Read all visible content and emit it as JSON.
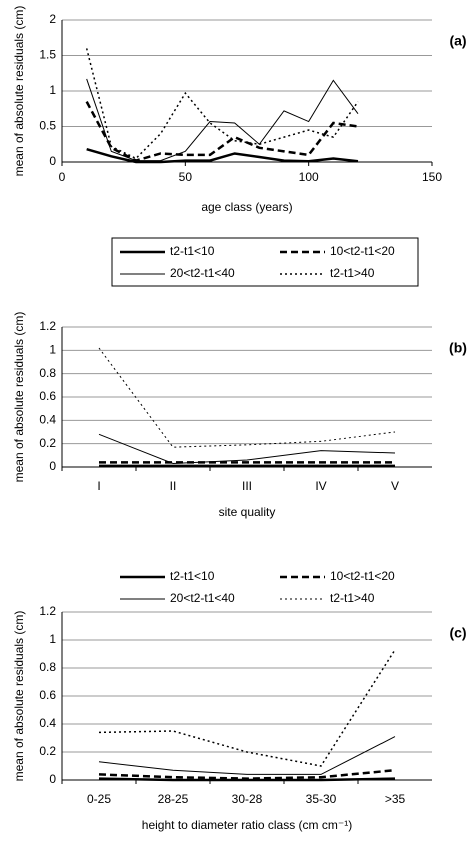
{
  "chart_data": [
    {
      "type": "line",
      "panel_label": "(a)",
      "x_label": "age class (years)",
      "y_label": "mean of absolute residuals (cm)",
      "x": [
        10,
        20,
        30,
        40,
        50,
        60,
        70,
        80,
        90,
        100,
        110,
        120
      ],
      "xlim": [
        0,
        150
      ],
      "xticks": [
        0,
        50,
        100,
        150
      ],
      "ylim": [
        0,
        2
      ],
      "yticks": [
        0,
        0.5,
        1,
        1.5,
        2
      ],
      "grid": true,
      "legend": "bottom-boxed",
      "series": [
        {
          "name": "t2-t1<10",
          "color": "#000000",
          "line_style": "solid",
          "line_width": 2.5,
          "values": [
            0.18,
            0.08,
            0.0,
            0.0,
            0.02,
            0.02,
            0.12,
            0.07,
            0.02,
            0.01,
            0.05,
            0.01
          ]
        },
        {
          "name": "10<t2-t1<20",
          "color": "#000000",
          "line_style": "dashed",
          "line_width": 2.5,
          "values": [
            0.85,
            0.2,
            0.02,
            0.12,
            0.1,
            0.1,
            0.35,
            0.2,
            0.15,
            0.1,
            0.55,
            0.5
          ]
        },
        {
          "name": "20<t2-t1<40",
          "color": "#000000",
          "line_style": "solid",
          "line_width": 1,
          "values": [
            1.17,
            0.15,
            0.02,
            0.02,
            0.15,
            0.57,
            0.55,
            0.25,
            0.72,
            0.57,
            1.15,
            0.68
          ]
        },
        {
          "name": "t2-t1>40",
          "color": "#000000",
          "line_style": "dotted",
          "line_width": 1.5,
          "values": [
            1.6,
            0.22,
            0.05,
            0.4,
            0.97,
            0.55,
            0.3,
            0.25,
            0.35,
            0.45,
            0.35,
            0.85
          ]
        }
      ]
    },
    {
      "type": "line",
      "panel_label": "(b)",
      "x_label": "site quality",
      "y_label": "mean of absolute residuals (cm)",
      "categories": [
        "I",
        "II",
        "III",
        "IV",
        "V"
      ],
      "ylim": [
        0,
        1.2
      ],
      "yticks": [
        0,
        0.2,
        0.4,
        0.6,
        0.8,
        1,
        1.2
      ],
      "grid": true,
      "legend": "bottom",
      "series": [
        {
          "name": "t2-t1<10",
          "color": "#000000",
          "line_style": "solid",
          "line_width": 2.5,
          "values": [
            0.01,
            0.01,
            0.01,
            0.01,
            0.01
          ]
        },
        {
          "name": "10<t2-t1<20",
          "color": "#000000",
          "line_style": "dashed",
          "line_width": 2.5,
          "values": [
            0.04,
            0.04,
            0.04,
            0.04,
            0.04
          ]
        },
        {
          "name": "20<t2-t1<40",
          "color": "#000000",
          "line_style": "solid",
          "line_width": 1,
          "values": [
            0.28,
            0.03,
            0.06,
            0.14,
            0.12
          ]
        },
        {
          "name": "t2-t1>40",
          "color": "#000000",
          "line_style": "dotted",
          "line_width": 1,
          "values": [
            1.02,
            0.17,
            0.19,
            0.22,
            0.3
          ]
        }
      ]
    },
    {
      "type": "line",
      "panel_label": "(c)",
      "x_label": "height to diameter ratio class  (cm cm⁻¹)",
      "y_label": "mean of absolute residuals (cm)",
      "categories": [
        "0-25",
        "28-25",
        "30-28",
        "35-30",
        ">35"
      ],
      "ylim": [
        0,
        1.2
      ],
      "yticks": [
        0,
        0.2,
        0.4,
        0.6,
        0.8,
        1,
        1.2
      ],
      "grid": true,
      "series": [
        {
          "color": "#000000",
          "line_style": "solid",
          "line_width": 2.5,
          "values": [
            0.01,
            0.0,
            0.0,
            0.0,
            0.01
          ]
        },
        {
          "color": "#000000",
          "line_style": "dashed",
          "line_width": 2.5,
          "values": [
            0.04,
            0.02,
            0.01,
            0.02,
            0.07
          ]
        },
        {
          "color": "#000000",
          "line_style": "solid",
          "line_width": 1,
          "values": [
            0.13,
            0.07,
            0.04,
            0.04,
            0.31
          ]
        },
        {
          "color": "#000000",
          "line_style": "dotted",
          "line_width": 1.5,
          "values": [
            0.34,
            0.35,
            0.2,
            0.1,
            0.93
          ]
        }
      ]
    }
  ]
}
